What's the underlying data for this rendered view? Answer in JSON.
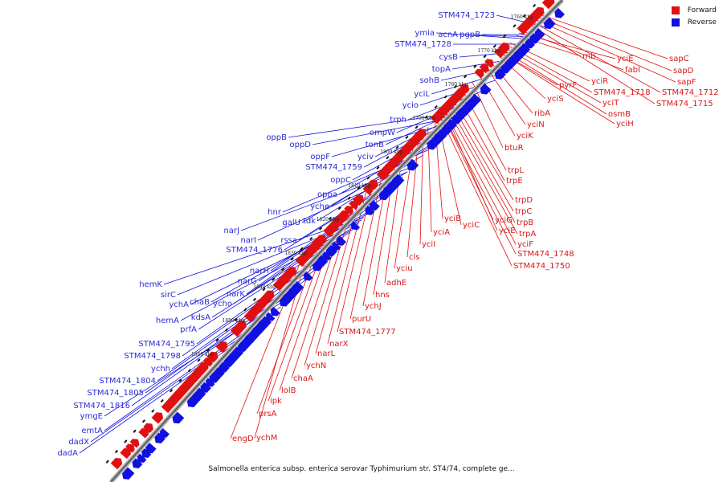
{
  "caption": "Salmonella enterica subsp. enterica serovar Typhimurium str. ST4/74, complete ge...",
  "legend": [
    {
      "label": "Forward",
      "color": "#e01010"
    },
    {
      "label": "Reverse",
      "color": "#1010e0"
    }
  ],
  "colors": {
    "forward": "#e01010",
    "reverse": "#1010e0",
    "backbone": "#666666"
  },
  "kbp_ticks": [
    "1760 kbp",
    "1770 kbp",
    "1780 kbp",
    "1790 kbp",
    "1800 kbp",
    "1810 kbp",
    "1820 kbp",
    "1830 kbp",
    "1840 kbp",
    "1850 kbp",
    "1860 kbp"
  ],
  "reverse_genes": [
    "STM474_1723",
    "ymia",
    "acnA",
    "pgpB",
    "STM474_1728",
    "cysB",
    "topA",
    "sohB",
    "yciL",
    "ycio",
    "trph",
    "ompW",
    "tonB",
    "yciv",
    "oppB",
    "oppD",
    "oppF",
    "STM474_1759",
    "oppC",
    "oppa",
    "yche",
    "hnr",
    "galU",
    "tdk",
    "narJ",
    "narI",
    "rssa",
    "STM474_1776",
    "narH",
    "narG",
    "narK",
    "hemK",
    "sirC",
    "chaB",
    "ycho",
    "ychA",
    "kdsA",
    "hemA",
    "prfA",
    "STM474_1795",
    "STM474_1798",
    "ychh",
    "STM474_1804",
    "STM474_1805",
    "STM474_1816",
    "ymgE",
    "emtA",
    "dadX",
    "dadA"
  ],
  "forward_genes_right": [
    "yciE",
    "sapC",
    "rnb",
    "fabI",
    "sapD",
    "sapF",
    "yciR",
    "STM474_1718",
    "STM474_1712",
    "yciT",
    "STM474_1715",
    "pyrF",
    "yciS",
    "osmB",
    "yciH",
    "ribA",
    "yciN",
    "yciK",
    "btuR",
    "trpL",
    "trpE",
    "trpD",
    "trpC",
    "trpB",
    "trpA",
    "yciF",
    "STM474_1748",
    "STM474_1750"
  ],
  "forward_genes_left": [
    "yciB",
    "yciC",
    "yciG",
    "yciE",
    "yciA",
    "yciI",
    "cls",
    "yciu",
    "adhE",
    "hns",
    "ychJ",
    "purU",
    "STM474_1777",
    "narX",
    "narL",
    "ychN",
    "chaA",
    "lolB",
    "ipk",
    "prsA",
    "ychM",
    "engD"
  ]
}
